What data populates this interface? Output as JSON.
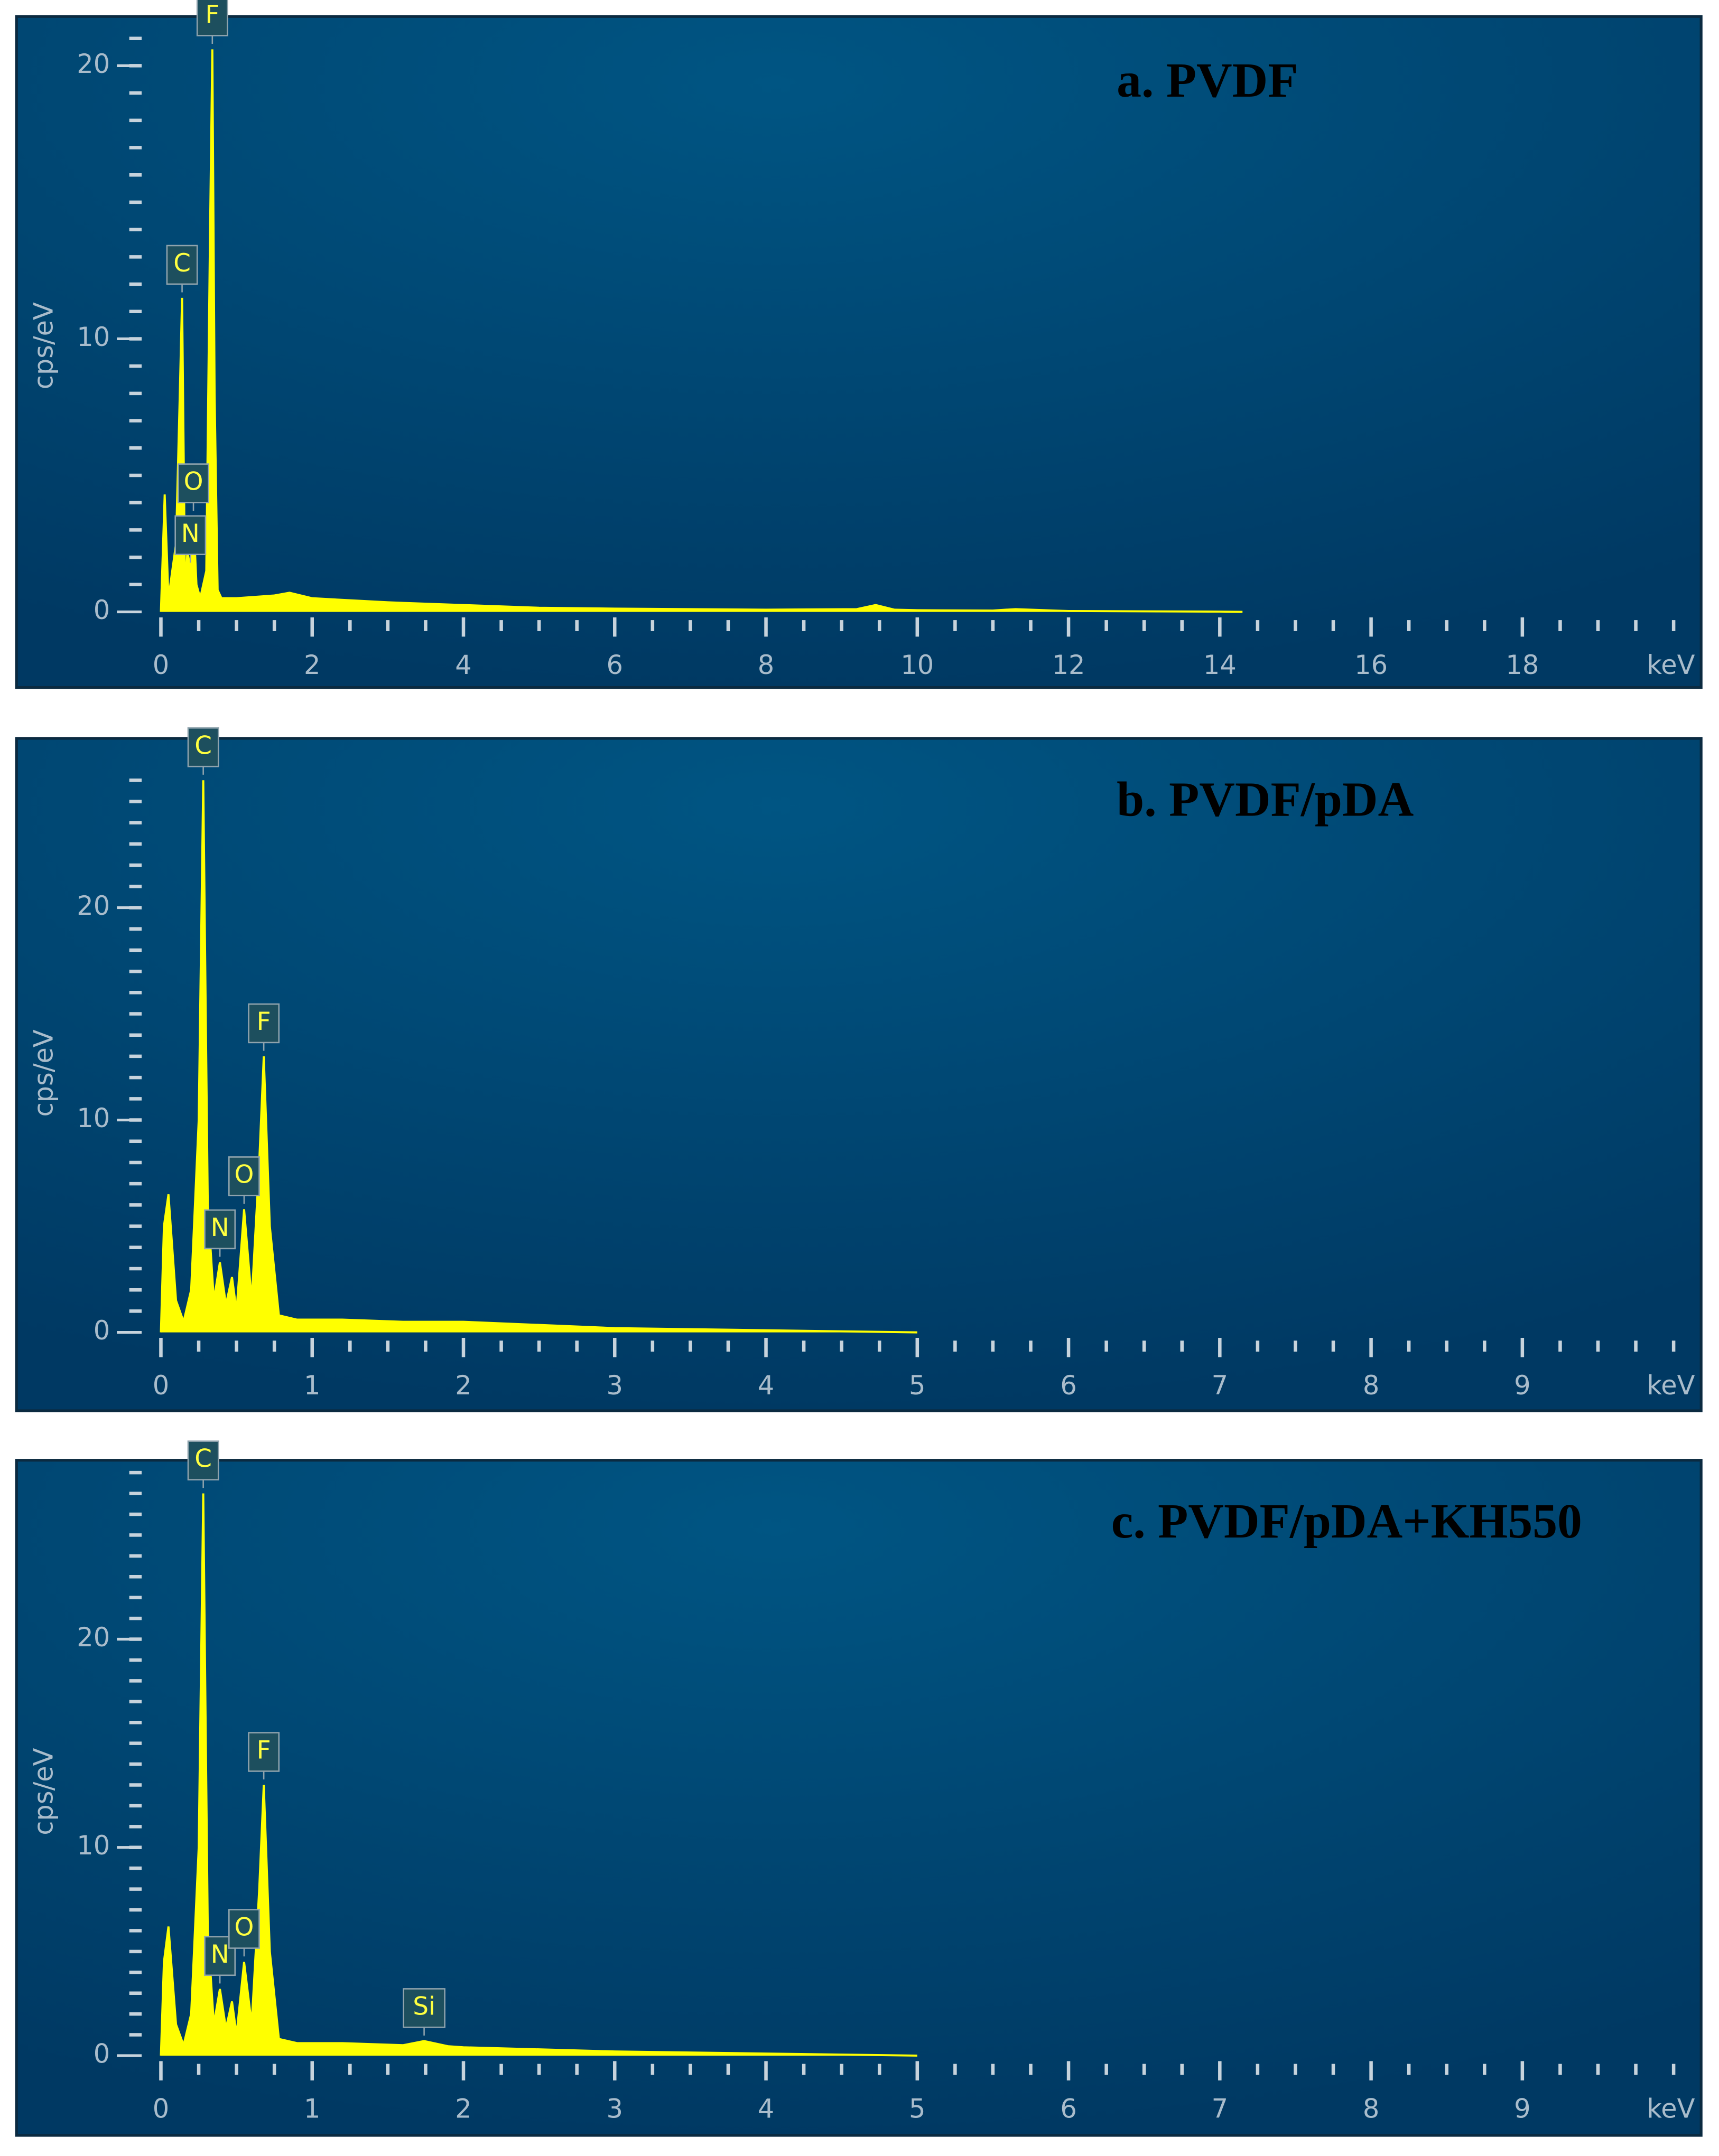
{
  "chart_data": [
    {
      "type": "area",
      "title": "a. PVDF",
      "ylabel": "cps/eV",
      "xlabel": "keV",
      "color": "#ffff00",
      "xlim": [
        0,
        20
      ],
      "ylim": [
        0,
        21.5
      ],
      "xticks": [
        0,
        2,
        4,
        6,
        8,
        10,
        12,
        14,
        16,
        18
      ],
      "yticks": [
        0,
        10,
        20
      ],
      "series": [
        {
          "x": [
            0,
            0.05,
            0.1,
            0.15,
            0.2,
            0.25,
            0.28,
            0.32,
            0.35,
            0.39,
            0.43,
            0.47,
            0.52,
            0.6,
            0.65,
            0.68,
            0.71,
            0.75,
            0.8,
            1,
            1.5,
            1.7,
            2,
            3,
            4,
            5,
            6,
            8,
            9.2,
            9.45,
            9.7,
            10,
            11,
            11.3,
            12,
            14,
            14.3
          ],
          "values": [
            0,
            4.3,
            0.5,
            1.5,
            2.5,
            8,
            11.5,
            0.6,
            2.2,
            1.6,
            3.5,
            1.0,
            0.5,
            1.5,
            14,
            20.6,
            8,
            0.8,
            0.5,
            0.5,
            0.6,
            0.7,
            0.5,
            0.35,
            0.25,
            0.15,
            0.12,
            0.08,
            0.1,
            0.25,
            0.08,
            0.06,
            0.05,
            0.1,
            0.03,
            0.01,
            0
          ]
        }
      ],
      "peaks": [
        {
          "label": "C",
          "x": 0.28
        },
        {
          "label": "N",
          "x": 0.39
        },
        {
          "label": "O",
          "x": 0.43
        },
        {
          "label": "F",
          "x": 0.68
        }
      ]
    },
    {
      "type": "area",
      "title": "b. PVDF/pDA",
      "ylabel": "cps/eV",
      "xlabel": "keV",
      "color": "#ffff00",
      "xlim": [
        0,
        10
      ],
      "ylim": [
        0,
        27
      ],
      "xticks": [
        0,
        1,
        2,
        3,
        4,
        5,
        6,
        7,
        8,
        9
      ],
      "yticks": [
        0,
        10,
        20
      ],
      "series": [
        {
          "x": [
            0,
            0.02,
            0.05,
            0.1,
            0.15,
            0.2,
            0.25,
            0.28,
            0.31,
            0.35,
            0.39,
            0.43,
            0.47,
            0.5,
            0.55,
            0.6,
            0.65,
            0.68,
            0.72,
            0.78,
            0.9,
            1.2,
            1.6,
            2,
            3,
            4,
            5
          ],
          "values": [
            0,
            5,
            6.5,
            1.5,
            0.5,
            2,
            10,
            26,
            6,
            1.5,
            3.3,
            1.3,
            2.6,
            1,
            5.8,
            1.5,
            8,
            13,
            5,
            0.8,
            0.6,
            0.6,
            0.5,
            0.5,
            0.2,
            0.1,
            0
          ]
        }
      ],
      "peaks": [
        {
          "label": "C",
          "x": 0.28
        },
        {
          "label": "N",
          "x": 0.39
        },
        {
          "label": "O",
          "x": 0.55
        },
        {
          "label": "F",
          "x": 0.68
        }
      ]
    },
    {
      "type": "area",
      "title": "c. PVDF/pDA+KH550",
      "ylabel": "cps/eV",
      "xlabel": "keV",
      "color": "#ffff00",
      "xlim": [
        0,
        10
      ],
      "ylim": [
        0,
        28
      ],
      "xticks": [
        0,
        1,
        2,
        3,
        4,
        5,
        6,
        7,
        8,
        9
      ],
      "yticks": [
        0,
        10,
        20
      ],
      "series": [
        {
          "x": [
            0,
            0.02,
            0.05,
            0.1,
            0.15,
            0.2,
            0.25,
            0.28,
            0.31,
            0.35,
            0.39,
            0.43,
            0.47,
            0.5,
            0.55,
            0.6,
            0.65,
            0.68,
            0.72,
            0.78,
            0.9,
            1.2,
            1.6,
            1.74,
            1.9,
            2,
            3,
            4,
            5
          ],
          "values": [
            0,
            4.5,
            6.2,
            1.5,
            0.5,
            2,
            10,
            27,
            6,
            1.5,
            3.2,
            1.3,
            2.6,
            1,
            4.5,
            1.5,
            8,
            13,
            5,
            0.8,
            0.6,
            0.6,
            0.5,
            0.7,
            0.45,
            0.4,
            0.2,
            0.1,
            0
          ]
        }
      ],
      "peaks": [
        {
          "label": "C",
          "x": 0.28
        },
        {
          "label": "N",
          "x": 0.39
        },
        {
          "label": "O",
          "x": 0.55
        },
        {
          "label": "F",
          "x": 0.68
        },
        {
          "label": "Si",
          "x": 1.74
        }
      ]
    }
  ]
}
